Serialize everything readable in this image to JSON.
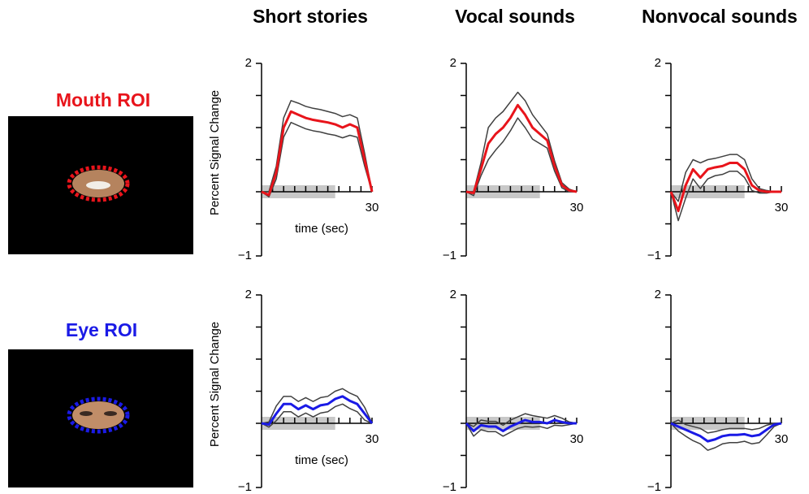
{
  "rows": [
    "Mouth ROI",
    "Eye ROI"
  ],
  "chart_data": [
    {
      "type": "line",
      "title": "Short stories",
      "xlabel": "time (sec)",
      "ylabel": "Percent Signal Change",
      "x": [
        0,
        2,
        4,
        6,
        8,
        10,
        12,
        14,
        16,
        18,
        20,
        22,
        24,
        26,
        28,
        30
      ],
      "xlim": [
        0,
        30
      ],
      "xticks": [
        30
      ],
      "xminorticks": [
        3,
        6,
        9,
        12,
        15,
        18,
        21,
        24,
        27
      ],
      "ylim": [
        -1,
        2
      ],
      "yticks": [
        {
          "value": -1,
          "label": "−1"
        },
        2
      ],
      "yminorticks": [
        -0.5,
        0,
        0.5,
        1,
        1.5
      ],
      "shade_x": [
        0,
        20
      ],
      "series": [
        {
          "color": "#e8141b",
          "values": [
            0,
            -0.05,
            0.3,
            1.0,
            1.25,
            1.2,
            1.15,
            1.12,
            1.1,
            1.08,
            1.05,
            1.0,
            1.05,
            1.0,
            0.5,
            0
          ]
        },
        {
          "color": "#404040",
          "values": [
            0,
            0,
            0.4,
            1.15,
            1.42,
            1.38,
            1.33,
            1.3,
            1.28,
            1.25,
            1.22,
            1.17,
            1.2,
            1.15,
            0.6,
            0
          ]
        },
        {
          "color": "#404040",
          "values": [
            0,
            -0.08,
            0.2,
            0.85,
            1.08,
            1.03,
            0.98,
            0.95,
            0.93,
            0.9,
            0.88,
            0.84,
            0.88,
            0.85,
            0.4,
            0
          ]
        }
      ]
    },
    {
      "type": "line",
      "title": "Vocal sounds",
      "x": [
        0,
        2,
        4,
        6,
        8,
        10,
        12,
        14,
        16,
        18,
        20,
        22,
        24,
        26,
        28,
        30
      ],
      "xlim": [
        0,
        30
      ],
      "xticks": [
        30
      ],
      "xminorticks": [
        3,
        6,
        9,
        12,
        15,
        18,
        21,
        24,
        27
      ],
      "ylim": [
        -1,
        2
      ],
      "yticks": [
        {
          "value": -1,
          "label": "−1"
        },
        2
      ],
      "yminorticks": [
        -0.5,
        0,
        0.5,
        1,
        1.5
      ],
      "shade_x": [
        0,
        20
      ],
      "series": [
        {
          "color": "#e8141b",
          "values": [
            0,
            -0.02,
            0.35,
            0.75,
            0.9,
            1.0,
            1.15,
            1.35,
            1.2,
            1.0,
            0.9,
            0.8,
            0.4,
            0.1,
            0.02,
            0
          ]
        },
        {
          "color": "#404040",
          "values": [
            0,
            0,
            0.45,
            1.0,
            1.15,
            1.25,
            1.4,
            1.55,
            1.42,
            1.2,
            1.05,
            0.9,
            0.48,
            0.14,
            0.04,
            0
          ]
        },
        {
          "color": "#404040",
          "values": [
            0,
            -0.06,
            0.25,
            0.5,
            0.65,
            0.78,
            0.95,
            1.15,
            1.0,
            0.82,
            0.75,
            0.68,
            0.32,
            0.06,
            0,
            0
          ]
        }
      ]
    },
    {
      "type": "line",
      "title": "Nonvocal sounds",
      "x": [
        0,
        2,
        4,
        6,
        8,
        10,
        12,
        14,
        16,
        18,
        20,
        22,
        24,
        26,
        28,
        30
      ],
      "xlim": [
        0,
        30
      ],
      "xticks": [
        30
      ],
      "xminorticks": [
        3,
        6,
        9,
        12,
        15,
        18,
        21,
        24,
        27
      ],
      "ylim": [
        -1,
        2
      ],
      "yticks": [
        {
          "value": -1,
          "label": "−1"
        },
        2
      ],
      "yminorticks": [
        -0.5,
        0,
        0.5,
        1,
        1.5
      ],
      "shade_x": [
        0,
        20
      ],
      "series": [
        {
          "color": "#e8141b",
          "values": [
            0,
            -0.3,
            0.1,
            0.35,
            0.22,
            0.35,
            0.38,
            0.4,
            0.45,
            0.45,
            0.35,
            0.1,
            0.02,
            0,
            0,
            0
          ]
        },
        {
          "color": "#404040",
          "values": [
            0,
            -0.15,
            0.3,
            0.5,
            0.45,
            0.5,
            0.52,
            0.55,
            0.58,
            0.58,
            0.5,
            0.2,
            0.05,
            0.02,
            0,
            0
          ]
        },
        {
          "color": "#404040",
          "values": [
            0,
            -0.45,
            -0.1,
            0.2,
            0.05,
            0.2,
            0.25,
            0.27,
            0.32,
            0.32,
            0.22,
            0.02,
            -0.02,
            -0.02,
            0,
            0
          ]
        }
      ]
    },
    {
      "type": "line",
      "xlabel": "time (sec)",
      "ylabel": "Percent Signal Change",
      "x": [
        0,
        2,
        4,
        6,
        8,
        10,
        12,
        14,
        16,
        18,
        20,
        22,
        24,
        26,
        28,
        30
      ],
      "xlim": [
        0,
        30
      ],
      "xticks": [
        30
      ],
      "xminorticks": [
        3,
        6,
        9,
        12,
        15,
        18,
        21,
        24,
        27
      ],
      "ylim": [
        -1,
        2
      ],
      "yticks": [
        {
          "value": -1,
          "label": "−1"
        },
        2
      ],
      "yminorticks": [
        -0.5,
        0,
        0.5,
        1,
        1.5
      ],
      "shade_x": [
        0,
        20
      ],
      "series": [
        {
          "color": "#1a1ae6",
          "values": [
            0,
            -0.02,
            0.15,
            0.3,
            0.3,
            0.22,
            0.28,
            0.22,
            0.28,
            0.3,
            0.38,
            0.42,
            0.35,
            0.3,
            0.15,
            0
          ]
        },
        {
          "color": "#404040",
          "values": [
            0,
            0.02,
            0.27,
            0.42,
            0.42,
            0.34,
            0.4,
            0.34,
            0.4,
            0.42,
            0.5,
            0.54,
            0.47,
            0.42,
            0.25,
            0
          ]
        },
        {
          "color": "#404040",
          "values": [
            0,
            -0.06,
            0.04,
            0.18,
            0.18,
            0.1,
            0.16,
            0.1,
            0.16,
            0.18,
            0.26,
            0.3,
            0.23,
            0.18,
            0.05,
            0
          ]
        }
      ]
    },
    {
      "type": "line",
      "x": [
        0,
        2,
        4,
        6,
        8,
        10,
        12,
        14,
        16,
        18,
        20,
        22,
        24,
        26,
        28,
        30
      ],
      "xlim": [
        0,
        30
      ],
      "xticks": [
        30
      ],
      "xminorticks": [
        3,
        6,
        9,
        12,
        15,
        18,
        21,
        24,
        27
      ],
      "ylim": [
        -1,
        2
      ],
      "yticks": [
        {
          "value": -1,
          "label": "−1"
        },
        2
      ],
      "yminorticks": [
        -0.5,
        0,
        0.5,
        1,
        1.5
      ],
      "shade_x": [
        0,
        20
      ],
      "series": [
        {
          "color": "#1a1ae6",
          "values": [
            0,
            -0.12,
            -0.03,
            -0.05,
            -0.05,
            -0.12,
            -0.05,
            0.0,
            0.05,
            0.02,
            0.02,
            0.0,
            0.05,
            0.02,
            0.0,
            0
          ]
        },
        {
          "color": "#404040",
          "values": [
            0,
            -0.05,
            0.05,
            0.03,
            0.03,
            -0.03,
            0.05,
            0.1,
            0.15,
            0.12,
            0.1,
            0.08,
            0.12,
            0.08,
            0.02,
            0
          ]
        },
        {
          "color": "#404040",
          "values": [
            0,
            -0.2,
            -0.1,
            -0.13,
            -0.13,
            -0.2,
            -0.14,
            -0.08,
            -0.05,
            -0.06,
            -0.05,
            -0.08,
            -0.03,
            -0.04,
            -0.02,
            0
          ]
        }
      ]
    },
    {
      "type": "line",
      "x": [
        0,
        2,
        4,
        6,
        8,
        10,
        12,
        14,
        16,
        18,
        20,
        22,
        24,
        26,
        28,
        30
      ],
      "xlim": [
        0,
        30
      ],
      "xticks": [
        30
      ],
      "xminorticks": [
        3,
        6,
        9,
        12,
        15,
        18,
        21,
        24,
        27
      ],
      "ylim": [
        -1,
        2
      ],
      "yticks": [
        {
          "value": -1,
          "label": "−1"
        },
        2
      ],
      "yminorticks": [
        -0.5,
        0,
        0.5,
        1,
        1.5
      ],
      "shade_x": [
        0,
        20
      ],
      "series": [
        {
          "color": "#1a1ae6",
          "values": [
            0,
            -0.05,
            -0.1,
            -0.15,
            -0.2,
            -0.28,
            -0.25,
            -0.2,
            -0.18,
            -0.18,
            -0.17,
            -0.2,
            -0.18,
            -0.1,
            -0.02,
            0
          ]
        },
        {
          "color": "#404040",
          "values": [
            0,
            0.05,
            -0.02,
            -0.05,
            -0.08,
            -0.15,
            -0.13,
            -0.1,
            -0.08,
            -0.08,
            -0.08,
            -0.1,
            -0.08,
            -0.03,
            0,
            0
          ]
        },
        {
          "color": "#404040",
          "values": [
            0,
            -0.12,
            -0.2,
            -0.27,
            -0.32,
            -0.42,
            -0.38,
            -0.32,
            -0.3,
            -0.3,
            -0.28,
            -0.32,
            -0.3,
            -0.18,
            -0.05,
            0
          ]
        }
      ]
    }
  ]
}
